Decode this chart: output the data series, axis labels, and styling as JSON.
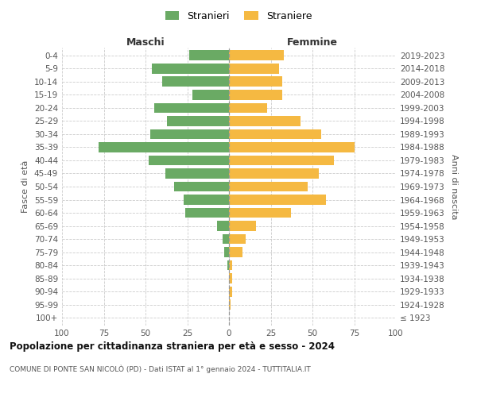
{
  "age_groups": [
    "100+",
    "95-99",
    "90-94",
    "85-89",
    "80-84",
    "75-79",
    "70-74",
    "65-69",
    "60-64",
    "55-59",
    "50-54",
    "45-49",
    "40-44",
    "35-39",
    "30-34",
    "25-29",
    "20-24",
    "15-19",
    "10-14",
    "5-9",
    "0-4"
  ],
  "birth_years": [
    "≤ 1923",
    "1924-1928",
    "1929-1933",
    "1934-1938",
    "1939-1943",
    "1944-1948",
    "1949-1953",
    "1954-1958",
    "1959-1963",
    "1964-1968",
    "1969-1973",
    "1974-1978",
    "1979-1983",
    "1984-1988",
    "1989-1993",
    "1994-1998",
    "1999-2003",
    "2004-2008",
    "2009-2013",
    "2014-2018",
    "2019-2023"
  ],
  "males": [
    0,
    0,
    0,
    0,
    1,
    3,
    4,
    7,
    26,
    27,
    33,
    38,
    48,
    78,
    47,
    37,
    45,
    22,
    40,
    46,
    24
  ],
  "females": [
    0,
    1,
    2,
    2,
    2,
    8,
    10,
    16,
    37,
    58,
    47,
    54,
    63,
    75,
    55,
    43,
    23,
    32,
    32,
    30,
    33
  ],
  "male_color": "#6aaa64",
  "female_color": "#f5b942",
  "grid_color": "#cccccc",
  "title": "Popolazione per cittadinanza straniera per età e sesso - 2024",
  "subtitle": "COMUNE DI PONTE SAN NICOLÒ (PD) - Dati ISTAT al 1° gennaio 2024 - TUTTITALIA.IT",
  "xlabel_left": "Maschi",
  "xlabel_right": "Femmine",
  "ylabel_left": "Fasce di età",
  "ylabel_right": "Anni di nascita",
  "legend_male": "Stranieri",
  "legend_female": "Straniere",
  "xlim": 100,
  "xticks": [
    -100,
    -75,
    -50,
    -25,
    0,
    25,
    50,
    75,
    100
  ],
  "xtick_labels": [
    "100",
    "75",
    "50",
    "25",
    "0",
    "25",
    "50",
    "75",
    "100"
  ]
}
